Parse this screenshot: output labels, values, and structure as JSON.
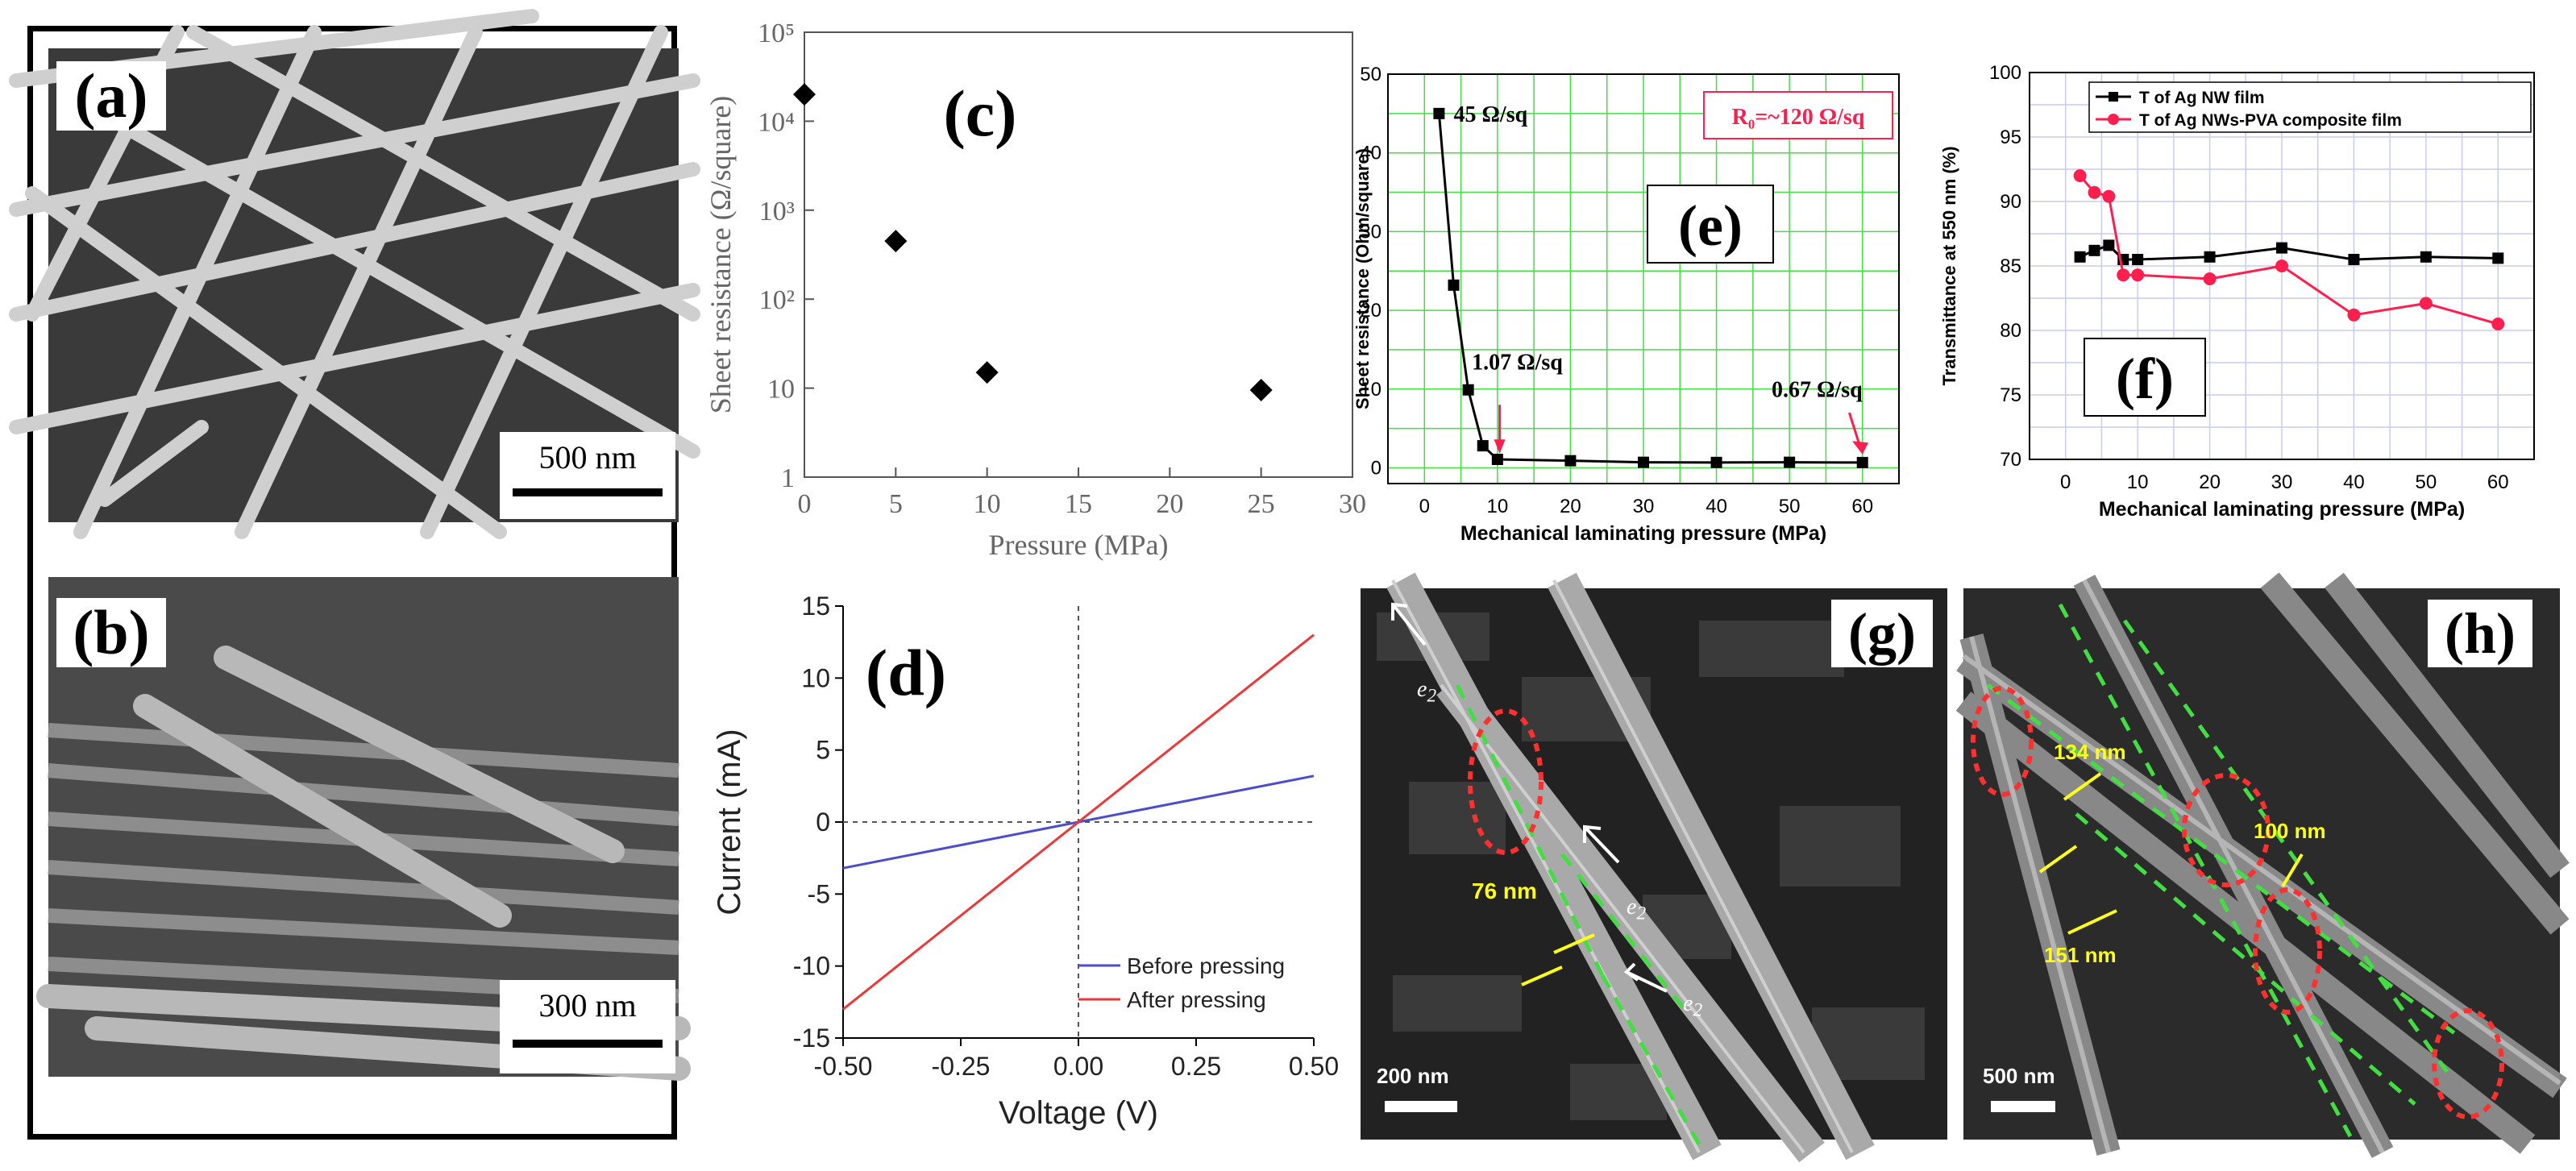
{
  "colors": {
    "blue": "#4d4dcc",
    "red": "#e83a3a",
    "series_black": "#000000",
    "series_red": "#ff1f4f",
    "grid_green": "#44dd44",
    "label_red": "#ff1f4f",
    "dim_yellow": "#ffff1a"
  },
  "panels": {
    "a": {
      "label": "(a)",
      "scale": "500 nm"
    },
    "b": {
      "label": "(b)",
      "scale": "300 nm"
    },
    "c": {
      "label": "(c)"
    },
    "d": {
      "label": "(d)"
    },
    "e": {
      "label": "(e)",
      "annotation_box": "R₀=~120 Ω/sq"
    },
    "f": {
      "label": "(f)"
    },
    "g": {
      "label": "(g)",
      "scale": "200 nm",
      "dims": [
        "76 nm"
      ],
      "electron": "e"
    },
    "h": {
      "label": "(h)",
      "scale": "500 nm",
      "dims": [
        "134 nm",
        "100 nm",
        "151 nm"
      ]
    }
  },
  "chart_data": [
    {
      "id": "c",
      "type": "scatter",
      "title": "",
      "xlabel": "Pressure (MPa)",
      "ylabel": "Sheet resistance (Ω/square)",
      "xlim": [
        0,
        30
      ],
      "ylim": [
        1,
        100000
      ],
      "yscale": "log",
      "x_ticks": [
        "0",
        "5",
        "10",
        "15",
        "20",
        "25",
        "30"
      ],
      "y_ticks": [
        "1",
        "10",
        "10²",
        "10³",
        "10⁴",
        "10⁵"
      ],
      "series": [
        {
          "name": "sheet resistance",
          "x": [
            0,
            5,
            10,
            25
          ],
          "y": [
            20000,
            450,
            15,
            9.5
          ]
        }
      ]
    },
    {
      "id": "d",
      "type": "line",
      "title": "",
      "xlabel": "Voltage (V)",
      "ylabel": "Current (mA)",
      "xlim": [
        -0.5,
        0.5
      ],
      "ylim": [
        -15,
        15
      ],
      "x_ticks": [
        "-0.50",
        "-0.25",
        "0.00",
        "0.25",
        "0.50"
      ],
      "y_ticks": [
        "-15",
        "-10",
        "-5",
        "0",
        "5",
        "10",
        "15"
      ],
      "legend": "bottom-right",
      "series": [
        {
          "name": "Before pressing",
          "x": [
            -0.5,
            0.5
          ],
          "y": [
            -3.2,
            3.2
          ]
        },
        {
          "name": "After pressing",
          "x": [
            -0.5,
            0.5
          ],
          "y": [
            -13,
            13
          ]
        }
      ]
    },
    {
      "id": "e",
      "type": "line",
      "title": "",
      "xlabel": "Mechanical laminating pressure (MPa)",
      "ylabel": "Sheet resistance (Ohm/square)",
      "xlim": [
        -5,
        65
      ],
      "ylim": [
        -2,
        50
      ],
      "grid": true,
      "x_ticks": [
        "0",
        "10",
        "20",
        "30",
        "40",
        "50",
        "60"
      ],
      "y_ticks": [
        "0",
        "10",
        "20",
        "30",
        "40",
        "50"
      ],
      "series": [
        {
          "name": "sheet resistance",
          "x": [
            2,
            4,
            6,
            8,
            10,
            20,
            30,
            40,
            50,
            60
          ],
          "y": [
            45,
            23.2,
            9.9,
            2.8,
            1.07,
            0.9,
            0.7,
            0.68,
            0.7,
            0.67
          ]
        }
      ],
      "annotations": [
        "45 Ω/sq",
        "1.07 Ω/sq",
        "0.67 Ω/sq"
      ]
    },
    {
      "id": "f",
      "type": "line",
      "title": "",
      "xlabel": "Mechanical laminating pressure (MPa)",
      "ylabel": "Transmittance at 550 nm (%)",
      "xlim": [
        -5,
        65
      ],
      "ylim": [
        70,
        100
      ],
      "grid": true,
      "legend": "top",
      "x_ticks": [
        "0",
        "10",
        "20",
        "30",
        "40",
        "50",
        "60"
      ],
      "y_ticks": [
        "70",
        "75",
        "80",
        "85",
        "90",
        "95",
        "100"
      ],
      "series": [
        {
          "name": "T of Ag NW film",
          "x": [
            2,
            4,
            6,
            8,
            10,
            20,
            30,
            40,
            50,
            60
          ],
          "y": [
            85.7,
            86.2,
            86.6,
            85.5,
            85.5,
            85.7,
            86.4,
            85.5,
            85.7,
            85.6
          ]
        },
        {
          "name": "T of Ag NWs-PVA composite film",
          "x": [
            2,
            4,
            6,
            8,
            10,
            20,
            30,
            40,
            50,
            60
          ],
          "y": [
            92,
            90.7,
            90.4,
            84.3,
            84.3,
            84,
            85,
            81.2,
            82.1,
            80.5
          ]
        }
      ]
    }
  ]
}
